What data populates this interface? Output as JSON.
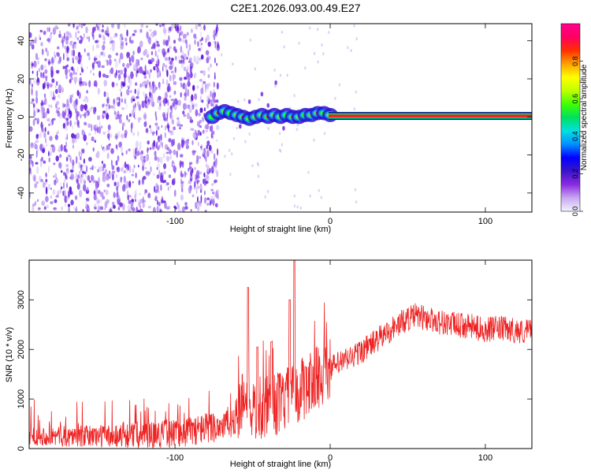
{
  "figure": {
    "title": "C2E1.2026.093.00.49.E27"
  },
  "chart_data": [
    {
      "type": "heatmap",
      "xlabel": "Height of straight line (km)",
      "ylabel": "Frequency (Hz)",
      "xlim": [
        -194,
        130
      ],
      "ylim": [
        -50,
        49
      ],
      "x_ticks": [
        -100,
        0,
        100
      ],
      "y_ticks": [
        -40,
        -20,
        0,
        20,
        40
      ],
      "colorbar": {
        "label": "Normalized spectral amplitude",
        "range": [
          0,
          1
        ],
        "ticks": [
          "0.0",
          "0.2",
          "0.4",
          "0.6",
          "0.8"
        ],
        "colormap": [
          "#f2f2ff",
          "#c8a8f0",
          "#8a2be2",
          "#3a14c8",
          "#0000ff",
          "#0090ff",
          "#00e0e0",
          "#00e060",
          "#40ff00",
          "#c0ff00",
          "#ffff00",
          "#ffa000",
          "#ff3000",
          "#ff0060",
          "#ff0090"
        ]
      },
      "regions": [
        {
          "label": "noise",
          "x_range": [
            -194,
            -72
          ],
          "freq_range": [
            -50,
            49
          ],
          "amplitude": "0.1-0.3"
        },
        {
          "label": "signal-onset",
          "x_range": [
            -78,
            0
          ],
          "freq_range": [
            -3,
            6
          ],
          "amplitude": "0.2-0.9"
        },
        {
          "label": "carrier",
          "x_range": [
            0,
            130
          ],
          "freq_hz": 0.5,
          "amplitude": 0.95
        }
      ],
      "ridge": {
        "x": [
          -76,
          -72,
          -68,
          -64,
          -60,
          -56,
          -52,
          -48,
          -44,
          -40,
          -36,
          -32,
          -28,
          -24,
          -20,
          -16,
          -12,
          -8,
          -4,
          0
        ],
        "freq": [
          0,
          2,
          3,
          2,
          1,
          0,
          -1,
          0,
          1,
          0,
          1,
          0,
          1,
          0,
          0,
          1,
          1,
          2,
          2,
          1
        ]
      }
    },
    {
      "type": "line",
      "xlabel": "Height of straight line (km)",
      "ylabel": "SNR (10 * v/v)",
      "xlim": [
        -194,
        130
      ],
      "ylim": [
        0,
        3800
      ],
      "x_ticks": [
        -100,
        0,
        100
      ],
      "y_ticks": [
        0,
        1000,
        2000,
        3000
      ],
      "color": "#ee2222",
      "series": [
        {
          "x": [
            -194,
            -180,
            -160,
            -140,
            -120,
            -100,
            -90,
            -80,
            -70,
            -62,
            -55,
            -50,
            -45,
            -40,
            -35,
            -30,
            -25,
            -20,
            -15,
            -10,
            -5,
            0,
            5,
            10,
            20,
            30,
            40,
            50,
            55,
            60,
            70,
            80,
            90,
            100,
            110,
            120,
            125,
            130
          ],
          "y": [
            260,
            250,
            250,
            260,
            270,
            310,
            350,
            420,
            470,
            560,
            1100,
            760,
            780,
            820,
            900,
            960,
            1050,
            1150,
            1260,
            1400,
            1520,
            1620,
            1700,
            1780,
            1960,
            2180,
            2420,
            2620,
            2680,
            2640,
            2560,
            2500,
            2460,
            2400,
            2420,
            2380,
            2350,
            2400
          ]
        }
      ],
      "spikes": [
        {
          "x": -53,
          "y": 3250
        },
        {
          "x": -47,
          "y": 2050
        },
        {
          "x": -38,
          "y": 2150
        },
        {
          "x": -26,
          "y": 3000
        },
        {
          "x": -23,
          "y": 3800
        },
        {
          "x": -16,
          "y": 1650
        }
      ]
    }
  ]
}
